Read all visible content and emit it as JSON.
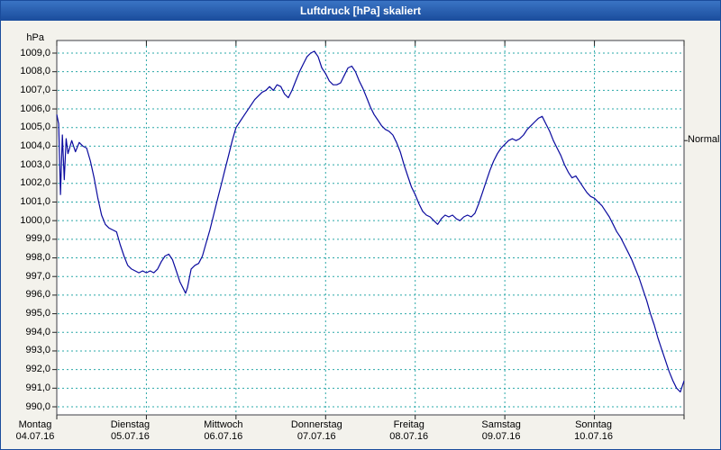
{
  "window": {
    "title": "Luftdruck [hPa] skaliert"
  },
  "colors": {
    "titlebar_from": "#3a74c4",
    "titlebar_to": "#1a4c9c",
    "title_text": "#ffffff",
    "window_bg": "#f3f2ec",
    "plot_bg": "#ffffff",
    "plot_border": "#3c3f46",
    "grid": "#2aa8a8",
    "line": "#0a0a9e",
    "text": "#000000"
  },
  "chart_data": {
    "type": "line",
    "title": "Luftdruck [hPa] skaliert",
    "y_axis": {
      "unit_label": "hPa",
      "min": 990,
      "max": 1009,
      "tick_step": 1,
      "tick_labels": [
        "1009,0",
        "1008,0",
        "1007,0",
        "1006,0",
        "1005,0",
        "1004,0",
        "1003,0",
        "1002,0",
        "1001,0",
        "1000,0",
        "999,0",
        "998,0",
        "997,0",
        "996,0",
        "995,0",
        "994,0",
        "993,0",
        "992,0",
        "991,0",
        "990,0"
      ]
    },
    "x_axis": {
      "hours_total": 168,
      "days": [
        {
          "day": "Montag",
          "date": "04.07.16"
        },
        {
          "day": "Dienstag",
          "date": "05.07.16"
        },
        {
          "day": "Mittwoch",
          "date": "06.07.16"
        },
        {
          "day": "Donnerstag",
          "date": "07.07.16"
        },
        {
          "day": "Freitag",
          "date": "08.07.16"
        },
        {
          "day": "Samstag",
          "date": "09.07.16"
        },
        {
          "day": "Sonntag",
          "date": "10.07.16"
        }
      ]
    },
    "annotation": {
      "label": "Normal",
      "value": 1004.3
    },
    "grid": {
      "style": "dashed",
      "horizontal_every_hpa": 1,
      "vertical_every_hours": 24
    },
    "series": [
      {
        "name": "Luftdruck",
        "unit": "hPa",
        "points": [
          [
            0,
            1005.7
          ],
          [
            0.5,
            1005.2
          ],
          [
            1,
            1001.4
          ],
          [
            1.5,
            1004.6
          ],
          [
            2,
            1002.2
          ],
          [
            2.5,
            1004.4
          ],
          [
            3,
            1003.6
          ],
          [
            4,
            1004.3
          ],
          [
            5,
            1003.7
          ],
          [
            6,
            1004.2
          ],
          [
            7,
            1004.0
          ],
          [
            8,
            1003.9
          ],
          [
            9,
            1003.2
          ],
          [
            10,
            1002.3
          ],
          [
            11,
            1001.2
          ],
          [
            12,
            1000.3
          ],
          [
            13,
            999.8
          ],
          [
            14,
            999.6
          ],
          [
            15,
            999.5
          ],
          [
            16,
            999.4
          ],
          [
            17,
            998.7
          ],
          [
            18,
            998.1
          ],
          [
            19,
            997.6
          ],
          [
            20,
            997.4
          ],
          [
            21,
            997.3
          ],
          [
            22,
            997.2
          ],
          [
            23,
            997.3
          ],
          [
            24,
            997.2
          ],
          [
            25,
            997.3
          ],
          [
            26,
            997.2
          ],
          [
            27,
            997.4
          ],
          [
            28,
            997.8
          ],
          [
            29,
            998.1
          ],
          [
            30,
            998.2
          ],
          [
            31,
            997.9
          ],
          [
            32,
            997.3
          ],
          [
            33,
            996.7
          ],
          [
            34,
            996.3
          ],
          [
            34.5,
            996.1
          ],
          [
            35,
            996.4
          ],
          [
            36,
            997.4
          ],
          [
            37,
            997.6
          ],
          [
            38,
            997.7
          ],
          [
            39,
            998.1
          ],
          [
            40,
            998.8
          ],
          [
            41,
            999.5
          ],
          [
            42,
            1000.3
          ],
          [
            43,
            1001.1
          ],
          [
            44,
            1001.9
          ],
          [
            45,
            1002.7
          ],
          [
            46,
            1003.5
          ],
          [
            47,
            1004.3
          ],
          [
            48,
            1005.0
          ],
          [
            49,
            1005.3
          ],
          [
            50,
            1005.6
          ],
          [
            51,
            1005.9
          ],
          [
            52,
            1006.2
          ],
          [
            53,
            1006.5
          ],
          [
            54,
            1006.7
          ],
          [
            55,
            1006.9
          ],
          [
            56,
            1007.0
          ],
          [
            57,
            1007.2
          ],
          [
            58,
            1007.0
          ],
          [
            59,
            1007.3
          ],
          [
            60,
            1007.2
          ],
          [
            61,
            1006.8
          ],
          [
            62,
            1006.6
          ],
          [
            63,
            1007.0
          ],
          [
            64,
            1007.5
          ],
          [
            65,
            1008.0
          ],
          [
            66,
            1008.4
          ],
          [
            67,
            1008.8
          ],
          [
            68,
            1009.0
          ],
          [
            69,
            1009.1
          ],
          [
            70,
            1008.8
          ],
          [
            71,
            1008.2
          ],
          [
            72,
            1007.9
          ],
          [
            73,
            1007.5
          ],
          [
            74,
            1007.3
          ],
          [
            75,
            1007.3
          ],
          [
            76,
            1007.4
          ],
          [
            77,
            1007.8
          ],
          [
            78,
            1008.2
          ],
          [
            79,
            1008.3
          ],
          [
            80,
            1008.0
          ],
          [
            81,
            1007.5
          ],
          [
            82,
            1007.1
          ],
          [
            83,
            1006.6
          ],
          [
            84,
            1006.1
          ],
          [
            85,
            1005.7
          ],
          [
            86,
            1005.4
          ],
          [
            87,
            1005.1
          ],
          [
            88,
            1004.9
          ],
          [
            89,
            1004.8
          ],
          [
            90,
            1004.6
          ],
          [
            91,
            1004.2
          ],
          [
            92,
            1003.7
          ],
          [
            93,
            1003.0
          ],
          [
            94,
            1002.4
          ],
          [
            95,
            1001.8
          ],
          [
            96,
            1001.4
          ],
          [
            97,
            1000.9
          ],
          [
            98,
            1000.5
          ],
          [
            99,
            1000.3
          ],
          [
            100,
            1000.2
          ],
          [
            101,
            1000.0
          ],
          [
            102,
            999.8
          ],
          [
            103,
            1000.1
          ],
          [
            104,
            1000.3
          ],
          [
            105,
            1000.2
          ],
          [
            106,
            1000.3
          ],
          [
            107,
            1000.1
          ],
          [
            108,
            1000.0
          ],
          [
            109,
            1000.2
          ],
          [
            110,
            1000.3
          ],
          [
            111,
            1000.2
          ],
          [
            112,
            1000.4
          ],
          [
            113,
            1000.9
          ],
          [
            114,
            1001.5
          ],
          [
            115,
            1002.1
          ],
          [
            116,
            1002.7
          ],
          [
            117,
            1003.2
          ],
          [
            118,
            1003.6
          ],
          [
            119,
            1003.9
          ],
          [
            120,
            1004.1
          ],
          [
            121,
            1004.3
          ],
          [
            122,
            1004.4
          ],
          [
            123,
            1004.3
          ],
          [
            124,
            1004.4
          ],
          [
            125,
            1004.6
          ],
          [
            126,
            1004.9
          ],
          [
            127,
            1005.1
          ],
          [
            128,
            1005.3
          ],
          [
            129,
            1005.5
          ],
          [
            130,
            1005.6
          ],
          [
            131,
            1005.2
          ],
          [
            132,
            1004.8
          ],
          [
            133,
            1004.3
          ],
          [
            134,
            1003.9
          ],
          [
            135,
            1003.5
          ],
          [
            136,
            1003.0
          ],
          [
            137,
            1002.6
          ],
          [
            138,
            1002.3
          ],
          [
            139,
            1002.4
          ],
          [
            140,
            1002.1
          ],
          [
            141,
            1001.8
          ],
          [
            142,
            1001.5
          ],
          [
            143,
            1001.3
          ],
          [
            144,
            1001.2
          ],
          [
            145,
            1001.0
          ],
          [
            146,
            1000.8
          ],
          [
            147,
            1000.5
          ],
          [
            148,
            1000.2
          ],
          [
            149,
            999.8
          ],
          [
            150,
            999.4
          ],
          [
            151,
            999.1
          ],
          [
            152,
            998.7
          ],
          [
            153,
            998.3
          ],
          [
            154,
            997.9
          ],
          [
            155,
            997.4
          ],
          [
            156,
            996.9
          ],
          [
            157,
            996.3
          ],
          [
            158,
            995.7
          ],
          [
            159,
            995.0
          ],
          [
            160,
            994.4
          ],
          [
            161,
            993.7
          ],
          [
            162,
            993.1
          ],
          [
            163,
            992.5
          ],
          [
            164,
            991.9
          ],
          [
            165,
            991.4
          ],
          [
            166,
            991.0
          ],
          [
            167,
            990.8
          ],
          [
            168,
            991.4
          ]
        ]
      }
    ]
  }
}
